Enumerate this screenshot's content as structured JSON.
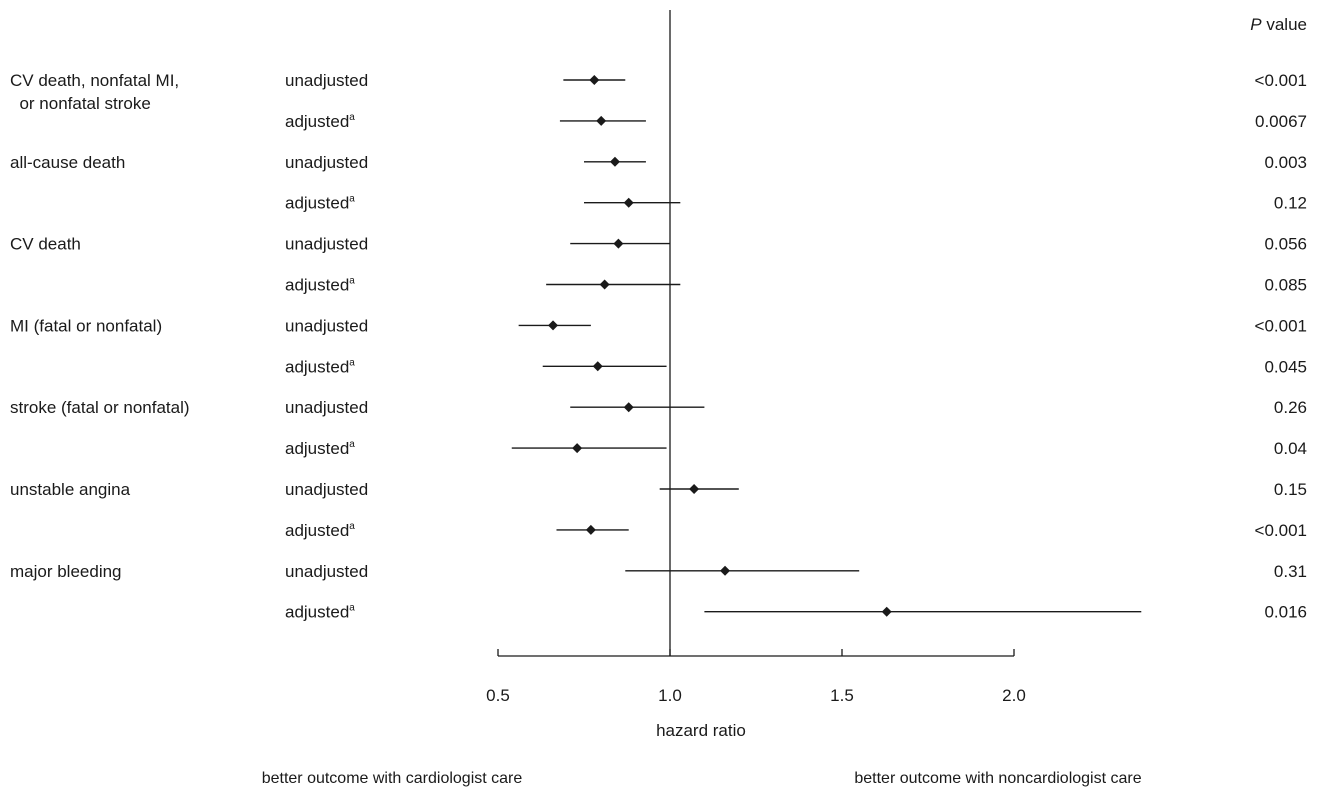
{
  "chart_data": {
    "type": "forest",
    "xlabel": "hazard ratio",
    "xlim": [
      0.5,
      2.4
    ],
    "x_ticks": [
      "0.5",
      "1.0",
      "1.5",
      "2.0"
    ],
    "reference_line": 1.0,
    "pvalue_header": {
      "italic": "P",
      "rest": " value"
    },
    "footer_left": "better outcome with cardiologist care",
    "footer_right": "better outcome with noncardiologist care",
    "rows": [
      {
        "outcome": [
          "CV death, nonfatal MI,",
          "  or nonfatal stroke"
        ],
        "analysis": "unadjusted",
        "sup": "",
        "hr": 0.78,
        "lo": 0.69,
        "hi": 0.87,
        "p": "<0.001"
      },
      {
        "outcome": [],
        "analysis": "adjusted",
        "sup": "a",
        "hr": 0.8,
        "lo": 0.68,
        "hi": 0.93,
        "p": "0.0067"
      },
      {
        "outcome": [
          "all-cause death"
        ],
        "analysis": "unadjusted",
        "sup": "",
        "hr": 0.84,
        "lo": 0.75,
        "hi": 0.93,
        "p": "0.003"
      },
      {
        "outcome": [],
        "analysis": "adjusted",
        "sup": "a",
        "hr": 0.88,
        "lo": 0.75,
        "hi": 1.03,
        "p": "0.12"
      },
      {
        "outcome": [
          "CV death"
        ],
        "analysis": "unadjusted",
        "sup": "",
        "hr": 0.85,
        "lo": 0.71,
        "hi": 1.0,
        "p": "0.056"
      },
      {
        "outcome": [],
        "analysis": "adjusted",
        "sup": "a",
        "hr": 0.81,
        "lo": 0.64,
        "hi": 1.03,
        "p": "0.085"
      },
      {
        "outcome": [
          "MI (fatal or nonfatal)"
        ],
        "analysis": "unadjusted",
        "sup": "",
        "hr": 0.66,
        "lo": 0.56,
        "hi": 0.77,
        "p": "<0.001"
      },
      {
        "outcome": [],
        "analysis": "adjusted",
        "sup": "a",
        "hr": 0.79,
        "lo": 0.63,
        "hi": 0.99,
        "p": "0.045"
      },
      {
        "outcome": [
          "stroke (fatal or nonfatal)"
        ],
        "analysis": "unadjusted",
        "sup": "",
        "hr": 0.88,
        "lo": 0.71,
        "hi": 1.1,
        "p": "0.26"
      },
      {
        "outcome": [],
        "analysis": "adjusted",
        "sup": "a",
        "hr": 0.73,
        "lo": 0.54,
        "hi": 0.99,
        "p": "0.04"
      },
      {
        "outcome": [
          "unstable angina"
        ],
        "analysis": "unadjusted",
        "sup": "",
        "hr": 1.07,
        "lo": 0.97,
        "hi": 1.2,
        "p": "0.15"
      },
      {
        "outcome": [],
        "analysis": "adjusted",
        "sup": "a",
        "hr": 0.77,
        "lo": 0.67,
        "hi": 0.88,
        "p": "<0.001"
      },
      {
        "outcome": [
          "major bleeding"
        ],
        "analysis": "unadjusted",
        "sup": "",
        "hr": 1.16,
        "lo": 0.87,
        "hi": 1.55,
        "p": "0.31"
      },
      {
        "outcome": [],
        "analysis": "adjusted",
        "sup": "a",
        "hr": 1.63,
        "lo": 1.1,
        "hi": 2.37,
        "p": "0.016"
      }
    ]
  },
  "colors": {
    "ink": "#1a1a1a"
  }
}
